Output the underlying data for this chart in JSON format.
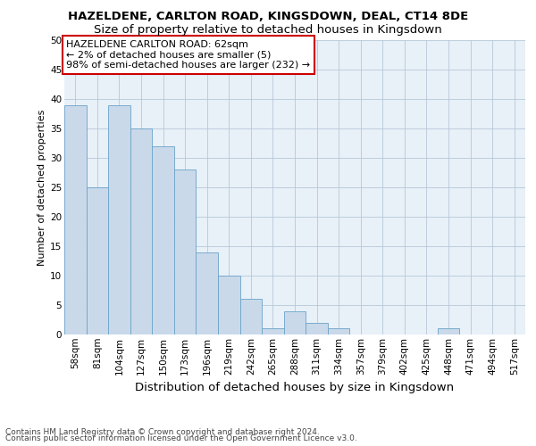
{
  "title": "HAZELDENE, CARLTON ROAD, KINGSDOWN, DEAL, CT14 8DE",
  "subtitle": "Size of property relative to detached houses in Kingsdown",
  "xlabel": "Distribution of detached houses by size in Kingsdown",
  "ylabel": "Number of detached properties",
  "bar_labels": [
    "58sqm",
    "81sqm",
    "104sqm",
    "127sqm",
    "150sqm",
    "173sqm",
    "196sqm",
    "219sqm",
    "242sqm",
    "265sqm",
    "288sqm",
    "311sqm",
    "334sqm",
    "357sqm",
    "379sqm",
    "402sqm",
    "425sqm",
    "448sqm",
    "471sqm",
    "494sqm",
    "517sqm"
  ],
  "bar_values": [
    39,
    25,
    39,
    35,
    32,
    28,
    14,
    10,
    6,
    1,
    4,
    2,
    1,
    0,
    0,
    0,
    0,
    1,
    0,
    0,
    0
  ],
  "bar_color": "#c9d9ea",
  "bar_edge_color": "#6ba3c8",
  "annotation_line1": "HAZELDENE CARLTON ROAD: 62sqm",
  "annotation_line2": "← 2% of detached houses are smaller (5)",
  "annotation_line3": "98% of semi-detached houses are larger (232) →",
  "annotation_box_color": "#cc0000",
  "annotation_box_fill": "#ffffff",
  "ylim": [
    0,
    50
  ],
  "yticks": [
    0,
    5,
    10,
    15,
    20,
    25,
    30,
    35,
    40,
    45,
    50
  ],
  "grid_color": "#b8c8d8",
  "bg_color": "#e8f0f8",
  "footer1": "Contains HM Land Registry data © Crown copyright and database right 2024.",
  "footer2": "Contains public sector information licensed under the Open Government Licence v3.0.",
  "title_fontsize": 9.5,
  "subtitle_fontsize": 9.5,
  "xlabel_fontsize": 9.5,
  "ylabel_fontsize": 8,
  "tick_fontsize": 7.5,
  "annotation_fontsize": 8,
  "footer_fontsize": 6.5
}
